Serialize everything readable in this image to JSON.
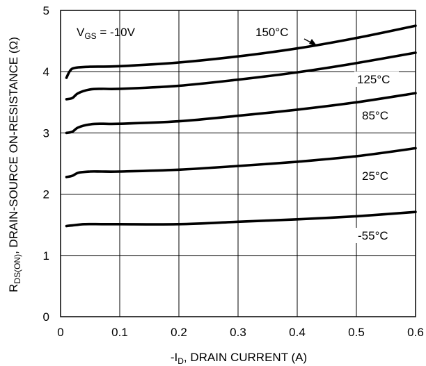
{
  "chart_data": {
    "type": "line",
    "xlabel_parts": {
      "prefix": "-I",
      "sub": "D",
      "rest": ", DRAIN CURRENT (A)"
    },
    "ylabel_parts": {
      "prefix": "R",
      "sub": "DS(ON)",
      "rest": ", DRAIN-SOURCE ON-RESISTANCE (Ω)"
    },
    "annotation": {
      "prefix": "V",
      "sub": "GS",
      "rest": " = -10V"
    },
    "xlim": [
      0,
      0.6
    ],
    "ylim": [
      0,
      5
    ],
    "x_ticks": [
      "0",
      "0.1",
      "0.2",
      "0.3",
      "0.4",
      "0.5",
      "0.6"
    ],
    "y_ticks": [
      "0",
      "1",
      "2",
      "3",
      "4",
      "5"
    ],
    "grid": true,
    "series": [
      {
        "name": "150°C",
        "x": [
          0.01,
          0.015,
          0.02,
          0.03,
          0.05,
          0.1,
          0.2,
          0.3,
          0.4,
          0.5,
          0.6
        ],
        "y": [
          3.9,
          4.0,
          4.05,
          4.07,
          4.08,
          4.09,
          4.15,
          4.25,
          4.38,
          4.55,
          4.75
        ]
      },
      {
        "name": "125°C",
        "x": [
          0.01,
          0.02,
          0.03,
          0.05,
          0.07,
          0.1,
          0.2,
          0.3,
          0.4,
          0.5,
          0.6
        ],
        "y": [
          3.55,
          3.57,
          3.65,
          3.71,
          3.72,
          3.72,
          3.77,
          3.87,
          3.99,
          4.14,
          4.31
        ]
      },
      {
        "name": "85°C",
        "x": [
          0.01,
          0.02,
          0.03,
          0.05,
          0.07,
          0.1,
          0.2,
          0.3,
          0.4,
          0.5,
          0.6
        ],
        "y": [
          3.0,
          3.02,
          3.09,
          3.14,
          3.15,
          3.15,
          3.19,
          3.28,
          3.38,
          3.5,
          3.65
        ]
      },
      {
        "name": "25°C",
        "x": [
          0.01,
          0.02,
          0.03,
          0.05,
          0.07,
          0.1,
          0.2,
          0.3,
          0.4,
          0.5,
          0.6
        ],
        "y": [
          2.28,
          2.3,
          2.35,
          2.37,
          2.37,
          2.37,
          2.4,
          2.46,
          2.53,
          2.62,
          2.75
        ]
      },
      {
        "name": "-55°C",
        "x": [
          0.01,
          0.02,
          0.04,
          0.07,
          0.1,
          0.2,
          0.3,
          0.4,
          0.5,
          0.6
        ],
        "y": [
          1.48,
          1.49,
          1.51,
          1.51,
          1.51,
          1.51,
          1.55,
          1.59,
          1.64,
          1.71
        ]
      }
    ]
  }
}
